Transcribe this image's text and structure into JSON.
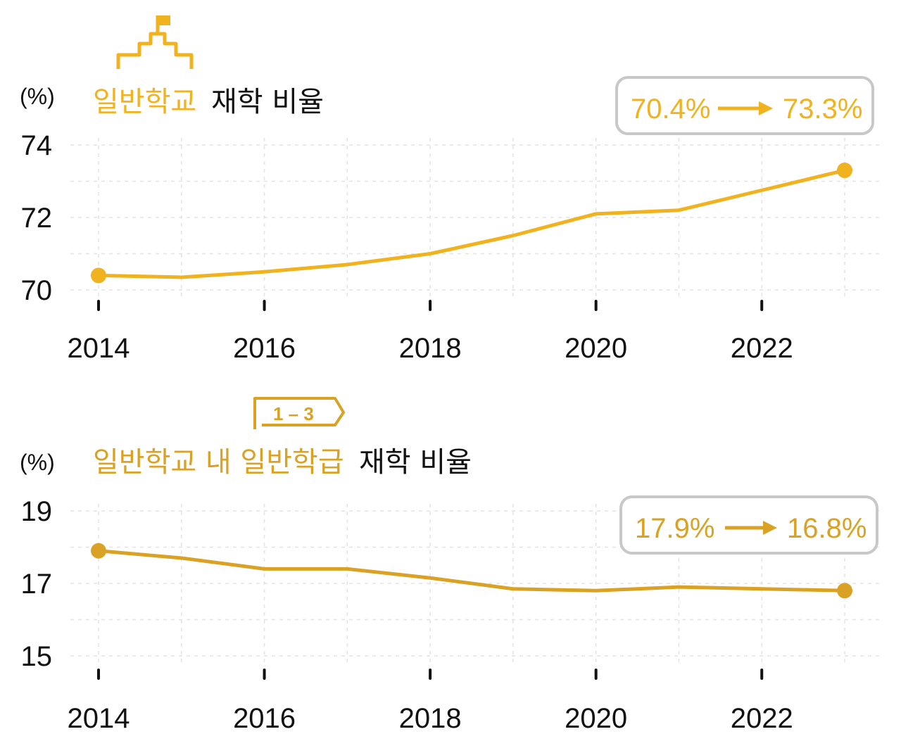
{
  "colors": {
    "top_accent": "#f0b21e",
    "bottom_accent": "#daa224",
    "text": "#111111",
    "callout_border": "#c8c8c8"
  },
  "chart_data": [
    {
      "type": "line",
      "unit": "(%)",
      "title_accent": "일반학교",
      "title_rest": "재학 비율",
      "icon": "school-building-icon",
      "x": [
        2014,
        2015,
        2016,
        2017,
        2018,
        2019,
        2020,
        2021,
        2022,
        2023
      ],
      "series": [
        {
          "values": [
            70.4,
            70.35,
            70.5,
            70.7,
            71.0,
            71.5,
            72.1,
            72.2,
            72.75,
            73.3
          ]
        }
      ],
      "ylim": [
        70,
        74
      ],
      "yticks": [
        70,
        72,
        74
      ],
      "xticks": [
        2014,
        2016,
        2018,
        2020,
        2022
      ],
      "xlim": [
        2014,
        2023
      ],
      "callout": {
        "from": "70.4%",
        "to": "73.3%"
      },
      "grid": true
    },
    {
      "type": "line",
      "unit": "(%)",
      "title_accent": "일반학교 내 일반학급",
      "title_rest": "재학 비율",
      "tag": "1 – 3",
      "x": [
        2014,
        2015,
        2016,
        2017,
        2018,
        2019,
        2020,
        2021,
        2022,
        2023
      ],
      "series": [
        {
          "values": [
            17.9,
            17.7,
            17.4,
            17.4,
            17.15,
            16.85,
            16.8,
            16.9,
            16.85,
            16.8
          ]
        }
      ],
      "ylim": [
        15,
        19
      ],
      "yticks": [
        15,
        17,
        19
      ],
      "xticks": [
        2014,
        2016,
        2018,
        2020,
        2022
      ],
      "xlim": [
        2014,
        2023
      ],
      "callout": {
        "from": "17.9%",
        "to": "16.8%"
      },
      "grid": true
    }
  ]
}
